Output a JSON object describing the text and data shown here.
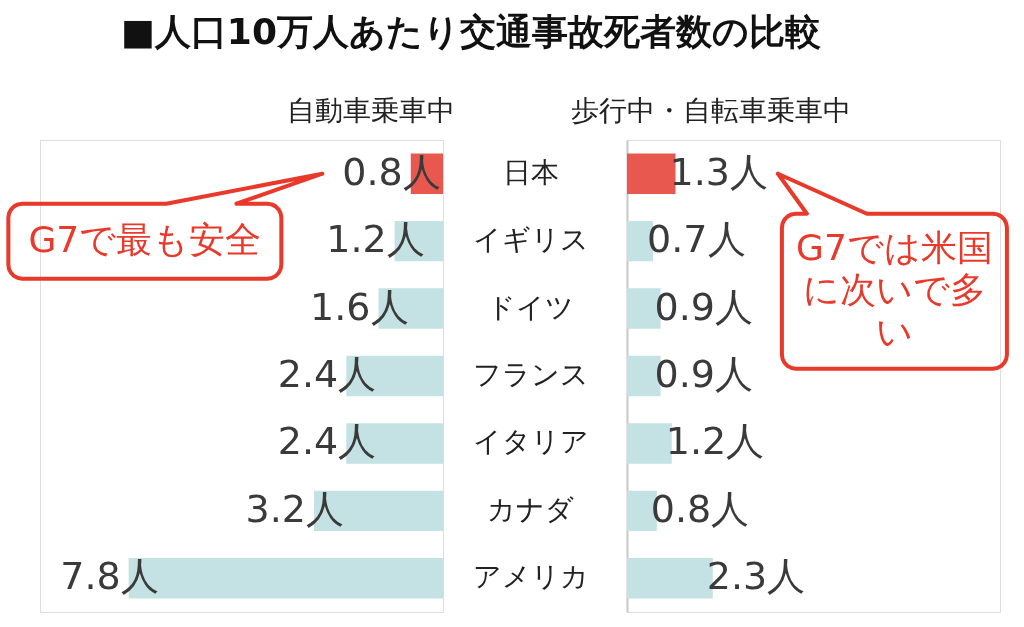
{
  "chart_data": [
    {
      "type": "bar",
      "orientation": "horizontal",
      "title": "■人口10万人あたり交通事故死者数の比較",
      "xlabel": "自動車乗車中",
      "categories": [
        null,
        null,
        null,
        null,
        null,
        null,
        null
      ],
      "values": [
        0.8,
        1.2,
        1.6,
        2.4,
        2.4,
        3.2,
        7.8
      ],
      "value_labels": [
        "0.8人",
        "1.2人",
        "1.6人",
        "2.4人",
        "2.4人",
        "3.2人",
        "7.8人"
      ],
      "colors": [
        "#e8584f",
        "#c4e1e4",
        "#c4e1e4",
        "#c4e1e4",
        "#c4e1e4",
        "#c4e1e4",
        "#c4e1e4"
      ],
      "xlim": [
        10,
        0
      ],
      "tick_labels": false,
      "annotations": [
        "G7で最も安全"
      ]
    },
    {
      "type": "bar",
      "orientation": "horizontal",
      "xlabel": "歩行中・自転車乗車中",
      "categories": [
        "日本",
        "イギリス",
        "ドイツ",
        "フランス",
        "イタリア",
        "カナダ",
        "アメリカ"
      ],
      "values": [
        1.3,
        0.7,
        0.9,
        0.9,
        1.2,
        0.8,
        2.3
      ],
      "value_labels": [
        "1.3人",
        "0.7人",
        "0.9人",
        "0.9人",
        "1.2人",
        "0.8人",
        "2.3人"
      ],
      "colors": [
        "#e8584f",
        "#c4e1e4",
        "#c4e1e4",
        "#c4e1e4",
        "#c4e1e4",
        "#c4e1e4",
        "#c4e1e4"
      ],
      "xlim": [
        0,
        10
      ],
      "tick_labels": "y",
      "annotations": [
        "G7では米国に次いで多い"
      ]
    }
  ]
}
